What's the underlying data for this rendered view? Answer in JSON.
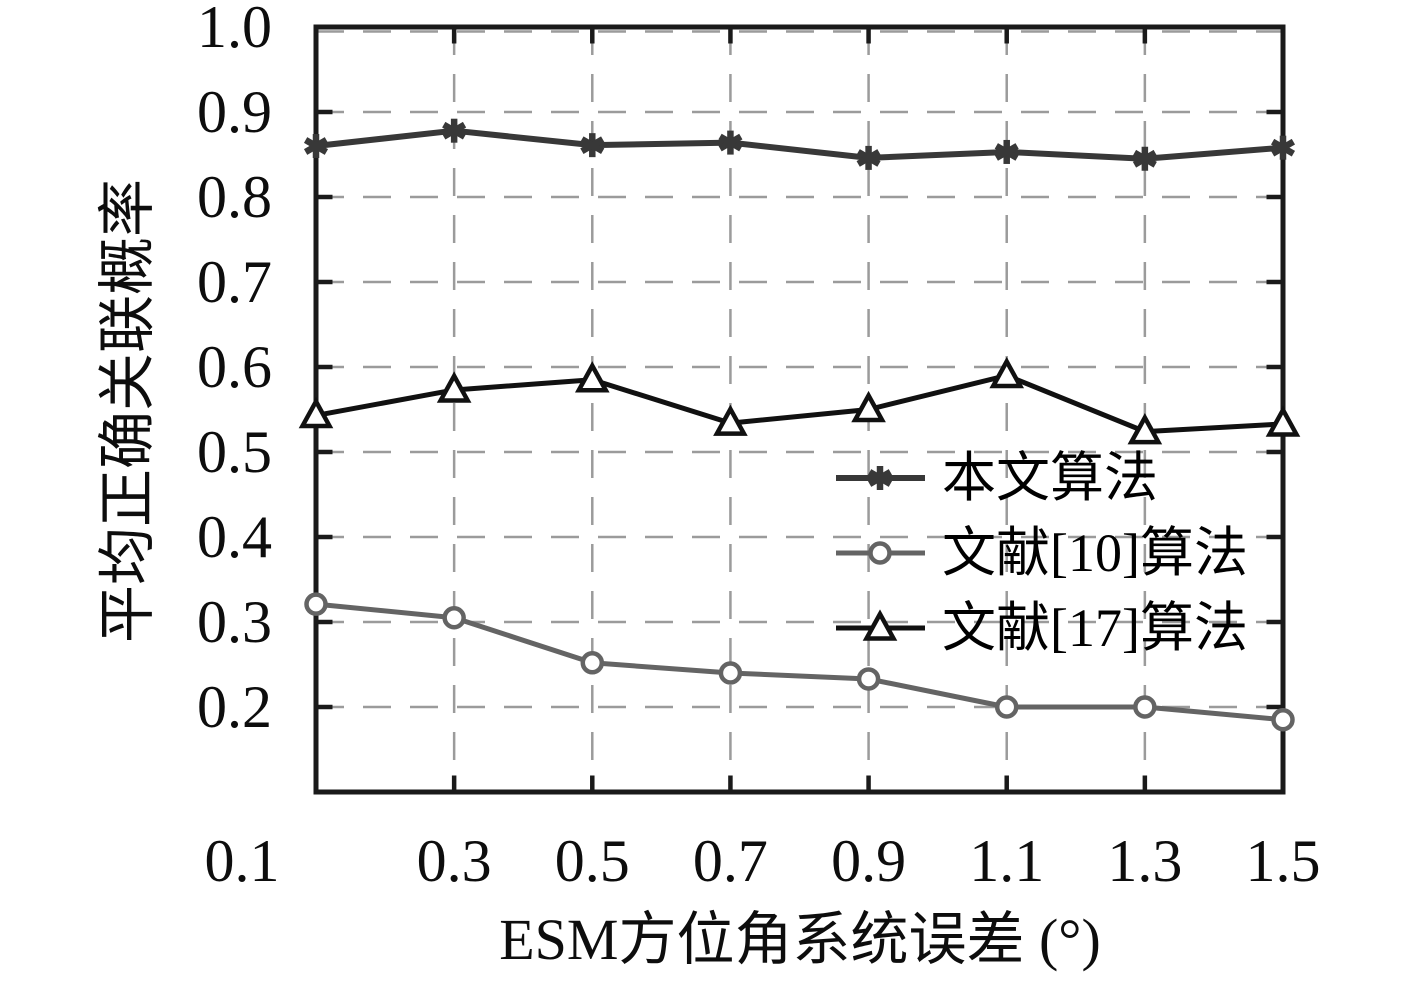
{
  "figure": {
    "background_color": "#ffffff",
    "text_color": "#0d0d0d"
  },
  "chart_data": {
    "type": "line",
    "title": "",
    "xlabel": "ESM方位角系统误差 (°)",
    "ylabel": "平均正确关联概率",
    "x": [
      0.1,
      0.3,
      0.5,
      0.7,
      0.9,
      1.1,
      1.3,
      1.5
    ],
    "xlim": [
      0.1,
      1.5
    ],
    "ylim": [
      0.1,
      1.0
    ],
    "xticks": {
      "values": [
        0.1,
        0.3,
        0.5,
        0.7,
        0.9,
        1.1,
        1.3,
        1.5
      ],
      "labels": [
        "0.1",
        "0.3",
        "0.5",
        "0.7",
        "0.9",
        "1.1",
        "1.3",
        "1.5"
      ]
    },
    "yticks": {
      "values": [
        0.2,
        0.3,
        0.4,
        0.5,
        0.6,
        0.7,
        0.8,
        0.9,
        1.0
      ],
      "labels": [
        "0.2",
        "0.3",
        "0.4",
        "0.5",
        "0.6",
        "0.7",
        "0.8",
        "0.9",
        "1.0"
      ]
    },
    "grid": true,
    "grid_style": "dashed",
    "grid_color": "#9b9b9b",
    "axis_color": "#1a1a1a",
    "legend_position": "inside-center-right",
    "series": [
      {
        "name": "本文算法",
        "marker": "star",
        "color": "#383838",
        "values": [
          0.86,
          0.878,
          0.861,
          0.864,
          0.846,
          0.853,
          0.845,
          0.858
        ]
      },
      {
        "name": "文献[10]算法",
        "marker": "circle",
        "color": "#646464",
        "values": [
          0.321,
          0.305,
          0.252,
          0.24,
          0.233,
          0.2,
          0.2,
          0.185
        ]
      },
      {
        "name": "文献[17]算法",
        "marker": "triangle",
        "color": "#111111",
        "values": [
          0.543,
          0.573,
          0.585,
          0.534,
          0.55,
          0.59,
          0.524,
          0.533
        ]
      }
    ]
  }
}
